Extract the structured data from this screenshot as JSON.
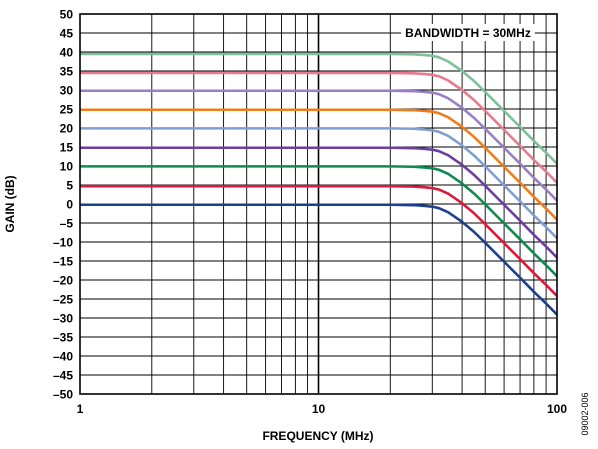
{
  "chart_data": {
    "type": "line",
    "title": "",
    "xlabel": "FREQUENCY (MHz)",
    "ylabel": "GAIN (dB)",
    "x_scale": "log",
    "xlim": [
      1,
      100
    ],
    "ylim": [
      -50,
      50
    ],
    "x_ticks": [
      "1",
      "10",
      "100"
    ],
    "y_ticks": [
      "50",
      "45",
      "40",
      "35",
      "30",
      "25",
      "20",
      "15",
      "10",
      "5",
      "0",
      "–5",
      "–10",
      "–15",
      "–20",
      "–25",
      "–30",
      "–35",
      "–40",
      "–45",
      "–50"
    ],
    "grid": true,
    "annotation": "BANDWIDTH = 30MHz",
    "figure_code": "09002-006",
    "x": [
      1,
      10,
      20,
      25,
      28,
      30,
      32,
      35,
      40,
      45,
      50,
      60,
      70,
      80,
      90,
      100
    ],
    "series": [
      {
        "color": "#7fbf9a",
        "values": [
          39.5,
          39.5,
          39.5,
          39.4,
          39.2,
          39.0,
          38.6,
          37.5,
          35.0,
          32.3,
          29.5,
          24.5,
          20.3,
          16.6,
          13.5,
          10.6
        ]
      },
      {
        "color": "#e87a8d",
        "values": [
          34.5,
          34.5,
          34.5,
          34.4,
          34.2,
          34.0,
          33.6,
          32.5,
          30.0,
          27.3,
          24.5,
          19.5,
          15.3,
          11.6,
          8.5,
          5.6
        ]
      },
      {
        "color": "#9b7fc4",
        "values": [
          29.8,
          29.8,
          29.8,
          29.7,
          29.5,
          29.3,
          28.9,
          27.8,
          25.3,
          22.6,
          19.8,
          14.8,
          10.6,
          6.9,
          3.8,
          0.9
        ]
      },
      {
        "color": "#f07d1a",
        "values": [
          24.8,
          24.8,
          24.8,
          24.7,
          24.5,
          24.3,
          23.9,
          22.8,
          20.3,
          17.6,
          14.8,
          9.8,
          5.6,
          1.9,
          -1.2,
          -4.1
        ]
      },
      {
        "color": "#7f9fd1",
        "values": [
          19.9,
          19.9,
          19.9,
          19.8,
          19.6,
          19.4,
          19.0,
          17.9,
          15.4,
          12.7,
          9.9,
          4.9,
          0.7,
          -3.0,
          -6.1,
          -9.0
        ]
      },
      {
        "color": "#6b3fa0",
        "values": [
          14.8,
          14.8,
          14.8,
          14.7,
          14.5,
          14.3,
          13.9,
          12.8,
          10.3,
          7.6,
          4.8,
          -0.2,
          -4.4,
          -8.1,
          -11.2,
          -14.1
        ]
      },
      {
        "color": "#0f8a4f",
        "values": [
          9.9,
          9.9,
          9.9,
          9.8,
          9.6,
          9.4,
          9.0,
          7.9,
          5.4,
          2.7,
          -0.1,
          -5.1,
          -9.3,
          -13.0,
          -16.1,
          -19.0
        ]
      },
      {
        "color": "#d81b3c",
        "values": [
          4.7,
          4.7,
          4.7,
          4.6,
          4.4,
          4.2,
          3.8,
          2.7,
          0.2,
          -2.5,
          -5.3,
          -10.3,
          -14.5,
          -18.2,
          -21.3,
          -24.2
        ]
      },
      {
        "color": "#1d3f8f",
        "values": [
          -0.2,
          -0.2,
          -0.2,
          -0.3,
          -0.5,
          -0.7,
          -1.1,
          -2.2,
          -4.7,
          -7.4,
          -10.2,
          -15.2,
          -19.4,
          -23.1,
          -26.2,
          -29.1
        ]
      }
    ]
  }
}
